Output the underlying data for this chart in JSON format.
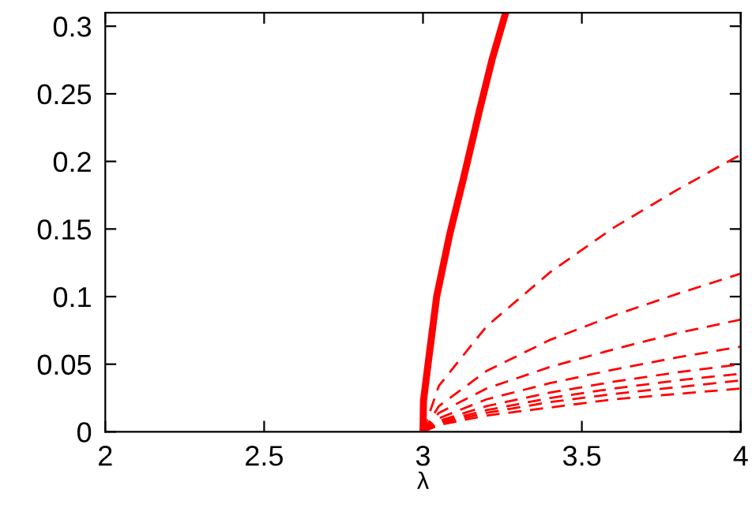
{
  "chart_data": {
    "type": "line",
    "xlabel": "λ",
    "xlim": [
      2,
      4
    ],
    "ylim": [
      0,
      0.31
    ],
    "xticks": [
      2,
      2.5,
      3,
      3.5,
      4
    ],
    "yticks": [
      0,
      0.05,
      0.1,
      0.15,
      0.2,
      0.25,
      0.3
    ],
    "grid": false,
    "marker": "none",
    "series": [
      {
        "color": "#ff0000",
        "line_style": "solid",
        "x": [
          3,
          3.0015,
          3.018,
          3.043,
          3.085,
          3.126,
          3.176,
          3.217,
          3.259
        ],
        "values": [
          0,
          0.023,
          0.054,
          0.1,
          0.147,
          0.186,
          0.236,
          0.275,
          0.309
        ]
      },
      {
        "color": "#ff0000",
        "line_style": "dashed",
        "x": [
          3,
          3.05,
          3.2,
          3.4,
          3.6,
          3.8,
          4
        ],
        "values": [
          0,
          0.034,
          0.078,
          0.118,
          0.151,
          0.179,
          0.205
        ]
      },
      {
        "color": "#ff0000",
        "line_style": "dashed",
        "x": [
          3,
          3.05,
          3.2,
          3.4,
          3.6,
          3.8,
          4
        ],
        "values": [
          0,
          0.019,
          0.045,
          0.068,
          0.086,
          0.102,
          0.117
        ]
      },
      {
        "color": "#ff0000",
        "line_style": "dashed",
        "x": [
          3,
          3.05,
          3.2,
          3.4,
          3.6,
          3.8,
          4
        ],
        "values": [
          0,
          0.014,
          0.032,
          0.048,
          0.061,
          0.073,
          0.083
        ]
      },
      {
        "color": "#ff0000",
        "line_style": "dashed",
        "x": [
          3,
          3.05,
          3.2,
          3.4,
          3.6,
          3.8,
          4
        ],
        "values": [
          0,
          0.01,
          0.024,
          0.036,
          0.046,
          0.055,
          0.063
        ]
      },
      {
        "color": "#ff0000",
        "line_style": "dashed",
        "x": [
          3,
          3.05,
          3.2,
          3.4,
          3.6,
          3.8,
          4
        ],
        "values": [
          0,
          0.008,
          0.019,
          0.029,
          0.037,
          0.044,
          0.05
        ]
      },
      {
        "color": "#ff0000",
        "line_style": "dashed",
        "x": [
          3,
          3.05,
          3.2,
          3.4,
          3.6,
          3.8,
          4
        ],
        "values": [
          0,
          0.007,
          0.016,
          0.025,
          0.032,
          0.038,
          0.043
        ]
      },
      {
        "color": "#ff0000",
        "line_style": "dashed",
        "x": [
          3,
          3.05,
          3.2,
          3.4,
          3.6,
          3.8,
          4
        ],
        "values": [
          0,
          0.006,
          0.014,
          0.022,
          0.028,
          0.033,
          0.038
        ]
      },
      {
        "color": "#ff0000",
        "line_style": "dashed",
        "x": [
          3,
          3.05,
          3.2,
          3.4,
          3.6,
          3.8,
          4
        ],
        "values": [
          0,
          0.005,
          0.012,
          0.018,
          0.024,
          0.028,
          0.032
        ]
      }
    ]
  }
}
